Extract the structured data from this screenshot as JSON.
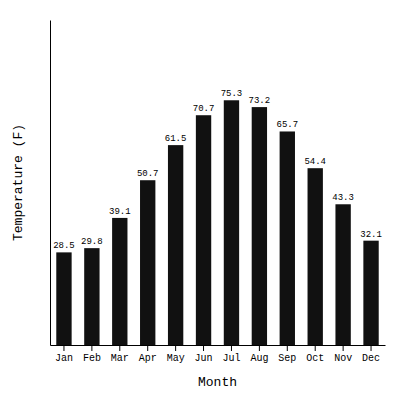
{
  "chart_data": {
    "type": "bar",
    "categories": [
      "Jan",
      "Feb",
      "Mar",
      "Apr",
      "May",
      "Jun",
      "Jul",
      "Aug",
      "Sep",
      "Oct",
      "Nov",
      "Dec"
    ],
    "values": [
      28.5,
      29.8,
      39.1,
      50.7,
      61.5,
      70.7,
      75.3,
      73.2,
      65.7,
      54.4,
      43.3,
      32.1
    ],
    "color": "#111111",
    "xlabel": "Month",
    "ylabel": "Temperature (F)",
    "ylim": [
      0,
      100
    ],
    "grid": false,
    "data_labels": true,
    "tick_labels": "x"
  }
}
